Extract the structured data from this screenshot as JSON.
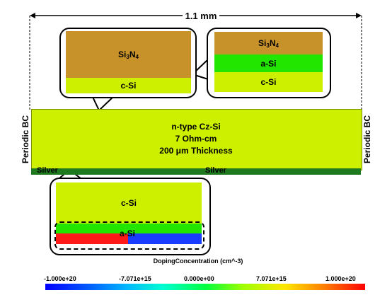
{
  "dimension": {
    "label": "1.1 mm"
  },
  "boundary": {
    "left": "Periodic BC",
    "right": "Periodic BC"
  },
  "substrate": {
    "line1": "n-type Cz-Si",
    "line2": "7 Ohm-cm",
    "line3": "200 μm Thickness"
  },
  "contacts": {
    "left": "Silver",
    "center": "Silver"
  },
  "callout_left_top": {
    "top_layer": "Si3N4",
    "bottom_layer": "c-Si"
  },
  "callout_right_top": {
    "top_layer": "Si3N4",
    "middle_layer": "a-Si",
    "bottom_layer": "c-Si"
  },
  "callout_bottom": {
    "top_layer": "c-Si",
    "doped_layer": "a-Si"
  },
  "colorbar": {
    "title": "DopingConcentration (cm^-3)",
    "ticks": [
      "-1.000e+20",
      "-7.071e+15",
      "0.000e+00",
      "7.071e+15",
      "1.000e+20"
    ]
  },
  "colors": {
    "c_si": "#ccf000",
    "si3n4": "#c8922a",
    "a_si": "#22e600",
    "silver": "#1f7a1f",
    "doped_p": "#ff1a1a",
    "doped_n": "#1a3cff"
  }
}
